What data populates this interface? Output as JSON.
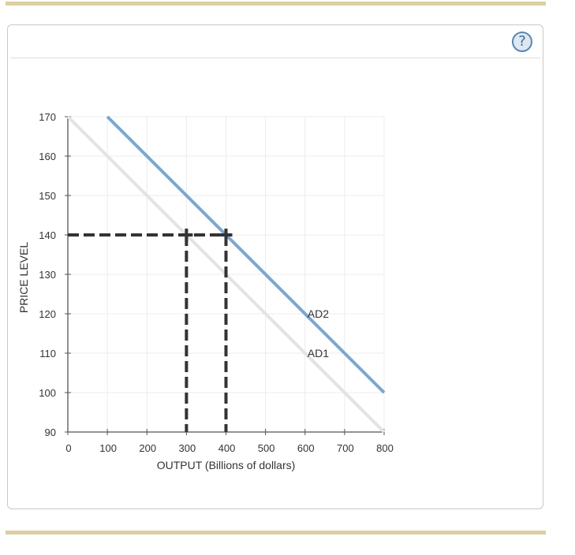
{
  "help": {
    "icon": "question-circle-icon",
    "glyph": "?"
  },
  "colors": {
    "rule": "#dccfa1",
    "ad1": "#e3e3e3",
    "ad2": "#7aa6d3",
    "dashed": "#333333",
    "grid": "#ececec",
    "axis": "#555555"
  },
  "chart_data": {
    "type": "line",
    "title": "",
    "xlabel": "OUTPUT (Billions of dollars)",
    "ylabel": "PRICE LEVEL",
    "xlim": [
      0,
      800
    ],
    "ylim": [
      90,
      170
    ],
    "x_ticks": [
      0,
      100,
      200,
      300,
      400,
      500,
      600,
      700,
      800
    ],
    "y_ticks": [
      90,
      100,
      110,
      120,
      130,
      140,
      150,
      160,
      170
    ],
    "grid": true,
    "series": [
      {
        "name": "AD1",
        "color": "#e3e3e3",
        "points": [
          [
            0,
            170
          ],
          [
            800,
            90
          ]
        ]
      },
      {
        "name": "AD2",
        "color": "#7aa6d3",
        "points": [
          [
            100,
            170
          ],
          [
            800,
            100
          ]
        ]
      }
    ],
    "annotations": [
      {
        "type": "dashed-horizontal",
        "y": 140,
        "x_from": 0,
        "x_to": 400
      },
      {
        "type": "dashed-vertical",
        "x": 300,
        "y_from": 90,
        "y_to": 140
      },
      {
        "type": "dashed-vertical",
        "x": 400,
        "y_from": 90,
        "y_to": 140
      },
      {
        "type": "point-marker",
        "shape": "cross",
        "x": 300,
        "y": 140
      },
      {
        "type": "point-marker",
        "shape": "cross",
        "x": 400,
        "y": 140
      },
      {
        "type": "label",
        "text": "AD2",
        "x": 600,
        "y": 120
      },
      {
        "type": "label",
        "text": "AD1",
        "x": 600,
        "y": 110
      }
    ]
  }
}
